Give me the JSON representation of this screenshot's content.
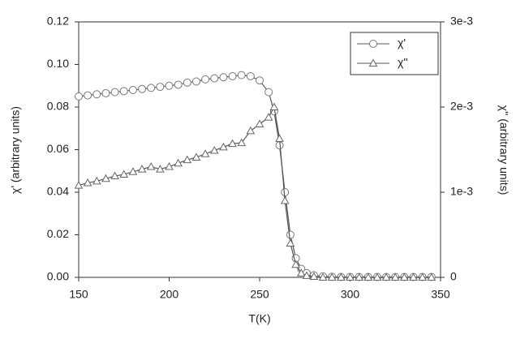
{
  "chart_data": {
    "type": "line",
    "x_label": "T(K)",
    "y_label": "χ' (arbitrary units)",
    "y2_label": "χ'' (arbitrary units)",
    "x": [
      150,
      155,
      160,
      165,
      170,
      175,
      180,
      185,
      190,
      195,
      200,
      205,
      210,
      215,
      220,
      225,
      230,
      235,
      240,
      245,
      250,
      255,
      258,
      261,
      264,
      267,
      270,
      273,
      276,
      280,
      285,
      290,
      295,
      300,
      305,
      310,
      315,
      320,
      325,
      330,
      335,
      340,
      345
    ],
    "series": [
      {
        "name": "χ'",
        "color": "#555555",
        "marker": "circle",
        "values": [
          0.085,
          0.0855,
          0.086,
          0.0865,
          0.087,
          0.0875,
          0.088,
          0.0885,
          0.089,
          0.0895,
          0.09,
          0.0905,
          0.0915,
          0.092,
          0.093,
          0.0935,
          0.094,
          0.0945,
          0.095,
          0.0945,
          0.0925,
          0.087,
          0.078,
          0.062,
          0.04,
          0.02,
          0.009,
          0.004,
          0.002,
          0.001,
          0.0005,
          0.0003,
          0.0002,
          0.0002,
          0.0002,
          0.0002,
          0.0002,
          0.0002,
          0.0002,
          0.0002,
          0.0002,
          0.0002,
          0.0002
        ]
      },
      {
        "name": "χ''",
        "color": "#555555",
        "marker": "triangle",
        "axis": "y2",
        "values": [
          0.00108,
          0.00111,
          0.00113,
          0.00116,
          0.00119,
          0.00121,
          0.00124,
          0.00127,
          0.0013,
          0.00127,
          0.0013,
          0.00134,
          0.00138,
          0.00141,
          0.00145,
          0.00149,
          0.00153,
          0.00157,
          0.00158,
          0.00172,
          0.0018,
          0.00188,
          0.002,
          0.00163,
          0.0009,
          0.0004,
          0.00015,
          5e-05,
          2e-05,
          1e-05,
          0,
          0,
          0,
          0,
          0,
          0,
          0,
          0,
          0,
          0,
          0,
          0,
          0
        ]
      }
    ],
    "xlim": [
      150,
      350
    ],
    "xticks": [
      150,
      200,
      250,
      300,
      350
    ],
    "ylim": [
      0,
      0.12
    ],
    "yticks": [
      {
        "value": 0,
        "label": "0.00"
      },
      0.02,
      0.04,
      0.06,
      0.08,
      {
        "value": 0.1,
        "label": "0.10"
      },
      0.12
    ],
    "y2lim": [
      0,
      0.003
    ],
    "y2ticks": [
      0,
      {
        "value": 0.001,
        "label": "1e-3"
      },
      {
        "value": 0.002,
        "label": "2e-3"
      },
      {
        "value": 0.003,
        "label": "3e-3"
      }
    ],
    "legend": "upper right"
  }
}
